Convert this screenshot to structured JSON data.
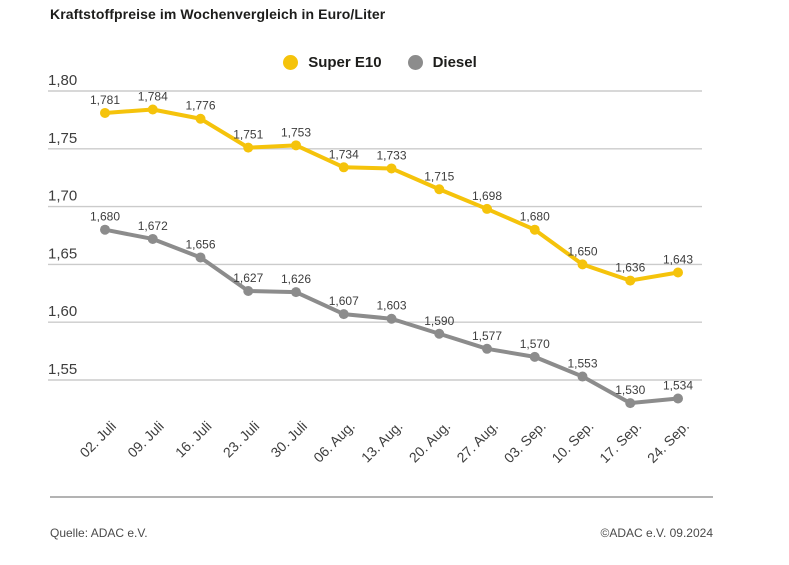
{
  "title": "Kraftstoffpreise im Wochenvergleich in Euro/Liter",
  "legend": {
    "items": [
      {
        "label": "Super E10",
        "color": "#F5C30B"
      },
      {
        "label": "Diesel",
        "color": "#8C8C8C"
      }
    ]
  },
  "footer": {
    "source": "Quelle: ADAC e.V.",
    "copyright": "©ADAC e.V. 09.2024"
  },
  "colors": {
    "super_e10": "#F5C30B",
    "diesel": "#8C8C8C",
    "gridline": "#CBCBCB",
    "title_text": "#1D1D1B",
    "label_text": "#3D3D3D"
  },
  "chart_data": {
    "type": "line",
    "title": "Kraftstoffpreise im Wochenvergleich in Euro/Liter",
    "xlabel": "",
    "ylabel": "Euro/Liter",
    "grid": true,
    "legend_position": "top-center",
    "ylim": [
      1.52,
      1.81
    ],
    "categories": [
      "02. Juli",
      "09. Juli",
      "16. Juli",
      "23. Juli",
      "30. Juli",
      "06. Aug.",
      "13. Aug.",
      "20. Aug.",
      "27. Aug.",
      "03. Sep.",
      "10. Sep.",
      "17. Sep.",
      "24. Sep."
    ],
    "y_ticks": [
      {
        "value": 1.8,
        "label": "1,80"
      },
      {
        "value": 1.75,
        "label": "1,75"
      },
      {
        "value": 1.7,
        "label": "1,70"
      },
      {
        "value": 1.65,
        "label": "1,65"
      },
      {
        "value": 1.6,
        "label": "1,60"
      },
      {
        "value": 1.55,
        "label": "1,55"
      }
    ],
    "series": [
      {
        "name": "Super E10",
        "color": "#F5C30B",
        "values": [
          1.781,
          1.784,
          1.776,
          1.751,
          1.753,
          1.734,
          1.733,
          1.715,
          1.698,
          1.68,
          1.65,
          1.636,
          1.643
        ],
        "value_labels": [
          "1,781",
          "1,784",
          "1,776",
          "1,751",
          "1,753",
          "1,734",
          "1,733",
          "1,715",
          "1,698",
          "1,680",
          "1,650",
          "1,636",
          "1,643"
        ]
      },
      {
        "name": "Diesel",
        "color": "#8C8C8C",
        "values": [
          1.68,
          1.672,
          1.656,
          1.627,
          1.626,
          1.607,
          1.603,
          1.59,
          1.577,
          1.57,
          1.553,
          1.53,
          1.534
        ],
        "value_labels": [
          "1,680",
          "1,672",
          "1,656",
          "1,627",
          "1,626",
          "1,607",
          "1,603",
          "1,590",
          "1,577",
          "1,570",
          "1,553",
          "1,530",
          "1,534"
        ]
      }
    ]
  }
}
